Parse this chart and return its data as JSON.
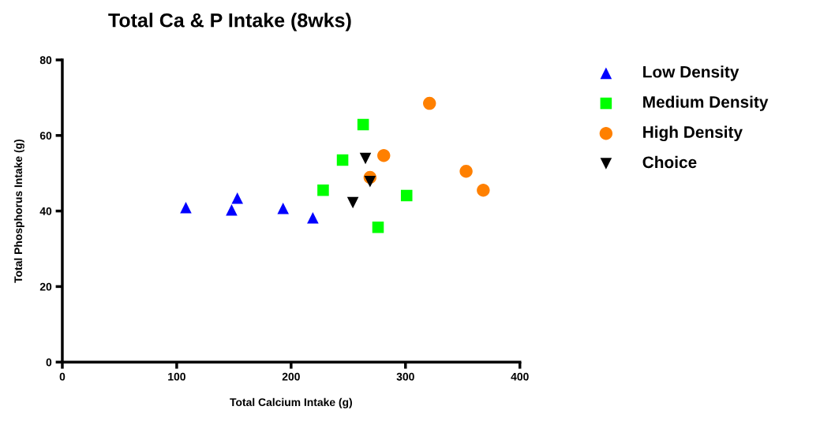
{
  "chart_data": {
    "type": "scatter",
    "title": "Total Ca & P Intake (8wks)",
    "xlabel": "Total Calcium Intake (g)",
    "ylabel": "Total Phosphorus Intake (g)",
    "xlim": [
      0,
      400
    ],
    "ylim": [
      0,
      80
    ],
    "xticks": [
      0,
      100,
      200,
      300,
      400
    ],
    "yticks": [
      0,
      20,
      40,
      60,
      80
    ],
    "grid": false,
    "legend": "right",
    "series": [
      {
        "name": "Low Density",
        "color": "#0000ff",
        "marker": "triangle",
        "x": [
          108,
          148,
          153,
          193,
          219
        ],
        "values": [
          40.9,
          40.3,
          43.4,
          40.7,
          38.2
        ]
      },
      {
        "name": "Medium Density",
        "color": "#00ff00",
        "marker": "square",
        "x": [
          228,
          245,
          263,
          276,
          301
        ],
        "values": [
          45.5,
          53.5,
          62.9,
          35.7,
          44.1
        ]
      },
      {
        "name": "High Density",
        "color": "#ff8000",
        "marker": "circle",
        "x": [
          321,
          269,
          281,
          353,
          368
        ],
        "values": [
          68.5,
          48.9,
          54.7,
          50.5,
          45.5
        ]
      },
      {
        "name": "Choice",
        "color": "#000000",
        "marker": "triangle_down",
        "x": [
          265,
          269,
          254
        ],
        "values": [
          53.9,
          47.8,
          42.2
        ]
      }
    ]
  }
}
